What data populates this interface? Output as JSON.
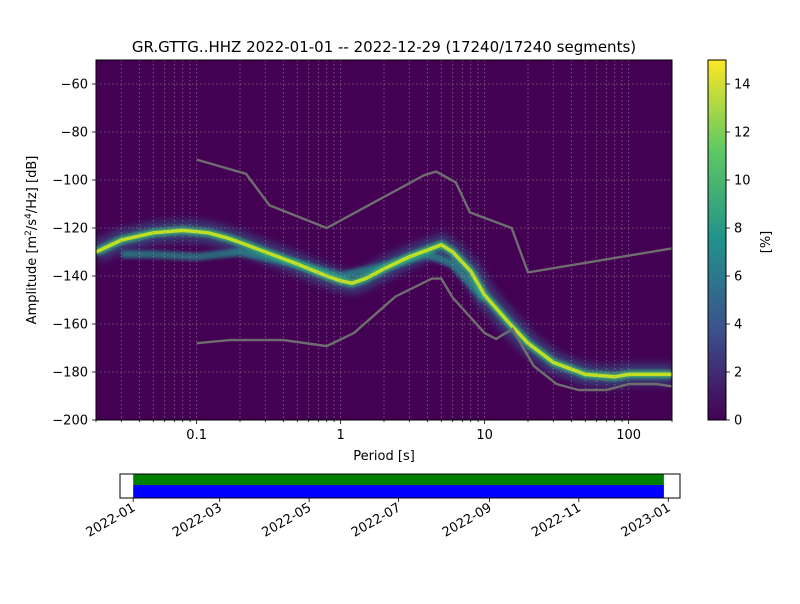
{
  "chart_data": [
    {
      "type": "heatmap",
      "title": "GR.GTTG..HHZ   2022-01-01 -- 2022-12-29  (17240/17240 segments)",
      "xlabel": "Period [s]",
      "ylabel_main": "Amplitude [m",
      "ylabel_sup1": "2",
      "ylabel_mid": "/s",
      "ylabel_sup2": "4",
      "ylabel_tail": "/Hz] [dB]",
      "xscale": "log",
      "xlim": [
        0.02,
        200
      ],
      "ylim": [
        -200,
        -50
      ],
      "x_ticks": [
        {
          "value": 0.1,
          "label": "0.1"
        },
        {
          "value": 1,
          "label": "1"
        },
        {
          "value": 10,
          "label": "10"
        },
        {
          "value": 100,
          "label": "100"
        }
      ],
      "y_ticks": [
        -60,
        -80,
        -100,
        -120,
        -140,
        -160,
        -180,
        -200
      ],
      "grid": true,
      "colorbar": {
        "label": "[%]",
        "range": [
          0,
          15
        ],
        "ticks": [
          0,
          2,
          4,
          6,
          8,
          10,
          12,
          14
        ],
        "colormap": [
          "#440154",
          "#3b528b",
          "#21918c",
          "#5ec962",
          "#fde725"
        ]
      },
      "mode_curve": [
        [
          0.02,
          -130
        ],
        [
          0.03,
          -125
        ],
        [
          0.05,
          -122
        ],
        [
          0.08,
          -121
        ],
        [
          0.12,
          -122
        ],
        [
          0.16,
          -124
        ],
        [
          0.2,
          -126
        ],
        [
          0.3,
          -130
        ],
        [
          0.5,
          -135
        ],
        [
          0.8,
          -140
        ],
        [
          1.0,
          -142
        ],
        [
          1.2,
          -143
        ],
        [
          1.5,
          -141
        ],
        [
          2.0,
          -137
        ],
        [
          3.0,
          -132
        ],
        [
          5.0,
          -127
        ],
        [
          6.0,
          -130
        ],
        [
          8.0,
          -138
        ],
        [
          10,
          -148
        ],
        [
          15,
          -160
        ],
        [
          20,
          -168
        ],
        [
          30,
          -176
        ],
        [
          50,
          -181
        ],
        [
          80,
          -182
        ],
        [
          100,
          -181
        ],
        [
          200,
          -181
        ]
      ],
      "secondary_band": [
        [
          0.03,
          -131
        ],
        [
          0.05,
          -131
        ],
        [
          0.1,
          -132
        ],
        [
          0.2,
          -130
        ],
        [
          0.5,
          -135
        ],
        [
          1.0,
          -140
        ],
        [
          2.0,
          -136
        ],
        [
          4.0,
          -131
        ],
        [
          6.0,
          -135
        ],
        [
          10,
          -150
        ]
      ],
      "nhnm": [
        [
          0.1,
          -91.5
        ],
        [
          0.22,
          -97.4
        ],
        [
          0.32,
          -110.5
        ],
        [
          0.8,
          -120
        ],
        [
          3.8,
          -98
        ],
        [
          4.6,
          -96.5
        ],
        [
          6.3,
          -101
        ],
        [
          7.9,
          -113.5
        ],
        [
          15.4,
          -120
        ],
        [
          20,
          -138.5
        ],
        [
          200,
          -128.5
        ]
      ],
      "nlnm": [
        [
          0.1,
          -168
        ],
        [
          0.17,
          -166.7
        ],
        [
          0.4,
          -166.7
        ],
        [
          0.8,
          -169.2
        ],
        [
          1.24,
          -163.7
        ],
        [
          2.4,
          -148.6
        ],
        [
          4.3,
          -141.1
        ],
        [
          5.0,
          -141.1
        ],
        [
          6.0,
          -149
        ],
        [
          10,
          -163.8
        ],
        [
          12,
          -166.2
        ],
        [
          15.6,
          -162.1
        ],
        [
          21.9,
          -177.5
        ],
        [
          31.6,
          -185
        ],
        [
          45,
          -187.5
        ],
        [
          70,
          -187.5
        ],
        [
          101,
          -185
        ],
        [
          154,
          -185
        ],
        [
          200,
          -186
        ]
      ],
      "timeline": {
        "ticks": [
          "2022-01",
          "2022-03",
          "2022-05",
          "2022-07",
          "2022-09",
          "2022-11",
          "2023-01"
        ],
        "range": [
          "2021-12-23",
          "2023-01-09"
        ],
        "coverage": [
          "2022-01-01",
          "2022-12-29"
        ],
        "colors": {
          "top": "#008000",
          "bottom": "#0000ff"
        }
      }
    }
  ]
}
